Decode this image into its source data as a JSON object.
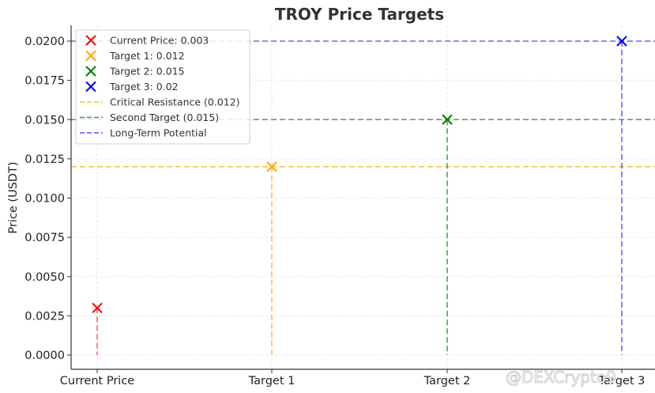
{
  "chart_data": {
    "type": "scatter",
    "title": "TROY Price Targets",
    "xlabel": "",
    "ylabel": "Price (USDT)",
    "categories": [
      "Current Price",
      "Target 1",
      "Target 2",
      "Target 3"
    ],
    "ylim": [
      -0.0007,
      0.0208
    ],
    "yticks": [
      "0.0000",
      "0.0025",
      "0.0050",
      "0.0075",
      "0.0100",
      "0.0125",
      "0.0150",
      "0.0175",
      "0.0200"
    ],
    "grid": true,
    "legend_position": "upper left",
    "points": [
      {
        "name": "Current Price: 0.003",
        "category": "Current Price",
        "value": 0.003,
        "color": "#ff0000",
        "marker": "x"
      },
      {
        "name": "Target 1: 0.012",
        "category": "Target 1",
        "value": 0.012,
        "color": "#ffa500",
        "marker": "x"
      },
      {
        "name": "Target 2: 0.015",
        "category": "Target 2",
        "value": 0.015,
        "color": "#008000",
        "marker": "x"
      },
      {
        "name": "Target 3: 0.02",
        "category": "Target 3",
        "value": 0.02,
        "color": "#0000ff",
        "marker": "x"
      }
    ],
    "hlines": [
      {
        "name": "Critical Resistance (0.012)",
        "value": 0.012,
        "color": "#ffa500",
        "style": "dashed"
      },
      {
        "name": "Second Target (0.015)",
        "value": 0.015,
        "color": "#008000",
        "style": "dashed"
      },
      {
        "name": "Long-Term Potential",
        "value": 0.02,
        "color": "#0000ff",
        "style": "dashed"
      }
    ],
    "vlines_to_points": true
  },
  "legend": {
    "items": [
      "Current Price: 0.003",
      "Target 1: 0.012",
      "Target 2: 0.015",
      "Target 3: 0.02",
      "Critical Resistance (0.012)",
      "Second Target (0.015)",
      "Long-Term Potential"
    ]
  },
  "watermark": "@DEXCrypto9"
}
